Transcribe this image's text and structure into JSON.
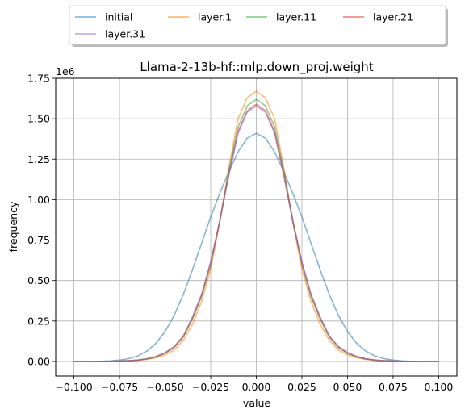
{
  "chart_data": {
    "type": "line",
    "title": "Llama-2-13b-hf::mlp.down_proj.weight",
    "xlabel": "value",
    "ylabel": "frequency",
    "y_scale_label": "1e6",
    "xlim": [
      -0.11,
      0.11
    ],
    "ylim": [
      -0.09,
      1.75
    ],
    "x_ticks": [
      -0.1,
      -0.075,
      -0.05,
      -0.025,
      0.0,
      0.025,
      0.05,
      0.075,
      0.1
    ],
    "x_tick_labels": [
      "−0.100",
      "−0.075",
      "−0.050",
      "−0.025",
      "0.000",
      "0.025",
      "0.050",
      "0.075",
      "0.100"
    ],
    "y_ticks": [
      0.0,
      0.25,
      0.5,
      0.75,
      1.0,
      1.25,
      1.5,
      1.75
    ],
    "y_tick_labels": [
      "0.00",
      "0.25",
      "0.50",
      "0.75",
      "1.00",
      "1.25",
      "1.50",
      "1.75"
    ],
    "grid": true,
    "legend": {
      "placement": "top, outside plot",
      "columns": 4
    },
    "series": [
      {
        "name": "initial",
        "color": "#1f77b4",
        "x": [
          -0.1,
          -0.095,
          -0.09,
          -0.085,
          -0.08,
          -0.075,
          -0.07,
          -0.065,
          -0.06,
          -0.055,
          -0.05,
          -0.045,
          -0.04,
          -0.035,
          -0.03,
          -0.025,
          -0.02,
          -0.015,
          -0.01,
          -0.005,
          0.0,
          0.005,
          0.01,
          0.015,
          0.02,
          0.025,
          0.03,
          0.035,
          0.04,
          0.045,
          0.05,
          0.055,
          0.06,
          0.065,
          0.07,
          0.075,
          0.08,
          0.085,
          0.09,
          0.095,
          0.1
        ],
        "y": [
          0.0,
          0.0,
          0.0,
          0.001,
          0.003,
          0.008,
          0.017,
          0.034,
          0.064,
          0.112,
          0.185,
          0.285,
          0.414,
          0.566,
          0.73,
          0.893,
          1.04,
          1.175,
          1.295,
          1.38,
          1.41,
          1.38,
          1.295,
          1.175,
          1.04,
          0.893,
          0.73,
          0.566,
          0.414,
          0.285,
          0.185,
          0.112,
          0.064,
          0.034,
          0.017,
          0.008,
          0.003,
          0.001,
          0.0,
          0.0,
          0.0
        ]
      },
      {
        "name": "layer.1",
        "color": "#ff7f0e",
        "x": [
          -0.1,
          -0.09,
          -0.08,
          -0.07,
          -0.065,
          -0.06,
          -0.055,
          -0.05,
          -0.045,
          -0.04,
          -0.035,
          -0.03,
          -0.025,
          -0.02,
          -0.015,
          -0.01,
          -0.005,
          0.0,
          0.005,
          0.01,
          0.015,
          0.02,
          0.025,
          0.03,
          0.035,
          0.04,
          0.045,
          0.05,
          0.055,
          0.06,
          0.065,
          0.07,
          0.08,
          0.09,
          0.1
        ],
        "y": [
          0.0,
          0.0,
          0.001,
          0.003,
          0.006,
          0.012,
          0.022,
          0.04,
          0.07,
          0.13,
          0.23,
          0.37,
          0.57,
          0.86,
          1.2,
          1.5,
          1.63,
          1.67,
          1.63,
          1.5,
          1.2,
          0.86,
          0.57,
          0.37,
          0.23,
          0.13,
          0.07,
          0.04,
          0.022,
          0.012,
          0.006,
          0.003,
          0.001,
          0.0,
          0.0
        ]
      },
      {
        "name": "layer.11",
        "color": "#2ca02c",
        "x": [
          -0.1,
          -0.09,
          -0.08,
          -0.07,
          -0.065,
          -0.06,
          -0.055,
          -0.05,
          -0.045,
          -0.04,
          -0.035,
          -0.03,
          -0.025,
          -0.02,
          -0.015,
          -0.01,
          -0.005,
          0.0,
          0.005,
          0.01,
          0.015,
          0.02,
          0.025,
          0.03,
          0.035,
          0.04,
          0.045,
          0.05,
          0.055,
          0.06,
          0.065,
          0.07,
          0.08,
          0.09,
          0.1
        ],
        "y": [
          0.0,
          0.0,
          0.001,
          0.004,
          0.008,
          0.015,
          0.028,
          0.05,
          0.085,
          0.15,
          0.26,
          0.4,
          0.6,
          0.87,
          1.18,
          1.45,
          1.58,
          1.62,
          1.58,
          1.45,
          1.18,
          0.87,
          0.6,
          0.4,
          0.26,
          0.15,
          0.085,
          0.05,
          0.028,
          0.015,
          0.008,
          0.004,
          0.001,
          0.0,
          0.0
        ]
      },
      {
        "name": "layer.21",
        "color": "#d62728",
        "x": [
          -0.1,
          -0.09,
          -0.08,
          -0.07,
          -0.065,
          -0.06,
          -0.055,
          -0.05,
          -0.045,
          -0.04,
          -0.035,
          -0.03,
          -0.025,
          -0.02,
          -0.015,
          -0.01,
          -0.005,
          0.0,
          0.005,
          0.01,
          0.015,
          0.02,
          0.025,
          0.03,
          0.035,
          0.04,
          0.045,
          0.05,
          0.055,
          0.06,
          0.065,
          0.07,
          0.08,
          0.09,
          0.1
        ],
        "y": [
          0.0,
          0.0,
          0.001,
          0.004,
          0.008,
          0.016,
          0.03,
          0.053,
          0.09,
          0.155,
          0.27,
          0.41,
          0.61,
          0.87,
          1.16,
          1.42,
          1.55,
          1.59,
          1.55,
          1.42,
          1.16,
          0.87,
          0.61,
          0.41,
          0.27,
          0.155,
          0.09,
          0.053,
          0.03,
          0.016,
          0.008,
          0.004,
          0.001,
          0.0,
          0.0
        ]
      },
      {
        "name": "layer.31",
        "color": "#9467bd",
        "x": [
          -0.1,
          -0.09,
          -0.08,
          -0.07,
          -0.065,
          -0.06,
          -0.055,
          -0.05,
          -0.045,
          -0.04,
          -0.035,
          -0.03,
          -0.025,
          -0.02,
          -0.015,
          -0.01,
          -0.005,
          0.0,
          0.005,
          0.01,
          0.015,
          0.02,
          0.025,
          0.03,
          0.035,
          0.04,
          0.045,
          0.05,
          0.055,
          0.06,
          0.065,
          0.07,
          0.08,
          0.09,
          0.1
        ],
        "y": [
          0.0,
          0.0,
          0.001,
          0.004,
          0.008,
          0.016,
          0.03,
          0.054,
          0.092,
          0.158,
          0.275,
          0.415,
          0.615,
          0.87,
          1.15,
          1.41,
          1.54,
          1.58,
          1.54,
          1.41,
          1.15,
          0.87,
          0.615,
          0.415,
          0.275,
          0.158,
          0.092,
          0.054,
          0.03,
          0.016,
          0.008,
          0.004,
          0.001,
          0.0,
          0.0
        ]
      }
    ]
  }
}
